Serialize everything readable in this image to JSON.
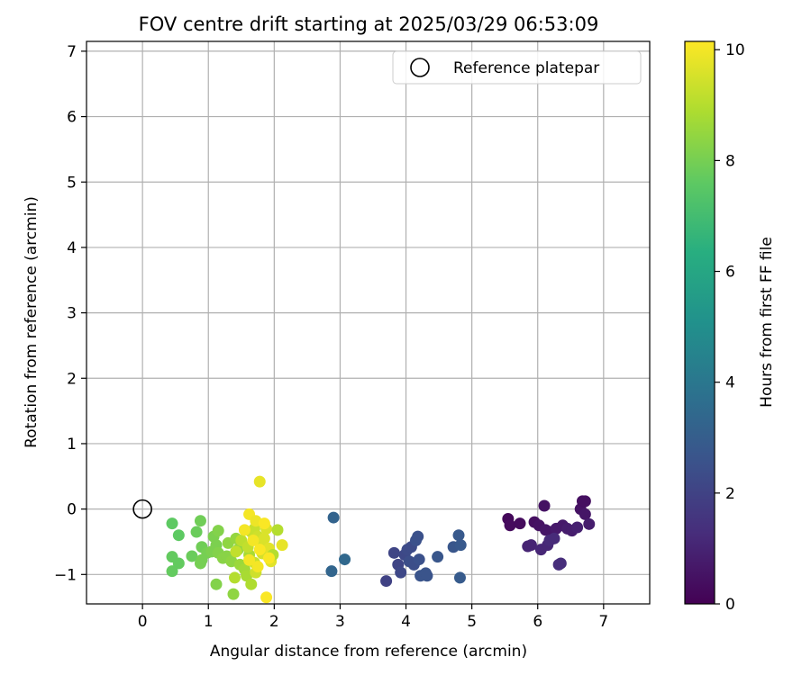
{
  "chart_data": {
    "type": "scatter",
    "title": "FOV centre drift starting at 2025/03/29 06:53:09",
    "xlabel": "Angular distance from reference (arcmin)",
    "ylabel": "Rotation from reference (arcmin)",
    "xlim": [
      -0.85,
      7.7
    ],
    "ylim": [
      -1.45,
      7.15
    ],
    "xticks": [
      0,
      1,
      2,
      3,
      4,
      5,
      6,
      7
    ],
    "yticks": [
      -1,
      0,
      1,
      2,
      3,
      4,
      5,
      6,
      7
    ],
    "grid": true,
    "legend": {
      "placement": "top-right",
      "entries": [
        "Reference platepar"
      ]
    },
    "reference_point": {
      "x": 0,
      "y": 0,
      "label": "Reference platepar"
    },
    "colorbar": {
      "label": "Hours from first FF file",
      "min": 0,
      "max": 10.15,
      "ticks": [
        0,
        2,
        4,
        6,
        8,
        10
      ],
      "colormap": "viridis"
    },
    "series": [
      {
        "name": "",
        "points": [
          {
            "x": 5.55,
            "y": -0.15,
            "t": 0.2
          },
          {
            "x": 5.58,
            "y": -0.25,
            "t": 0.3
          },
          {
            "x": 5.73,
            "y": -0.22,
            "t": 0.3
          },
          {
            "x": 5.95,
            "y": -0.2,
            "t": 0.4
          },
          {
            "x": 6.02,
            "y": -0.25,
            "t": 0.5
          },
          {
            "x": 6.1,
            "y": 0.05,
            "t": 0.5
          },
          {
            "x": 6.12,
            "y": -0.32,
            "t": 0.6
          },
          {
            "x": 6.2,
            "y": -0.35,
            "t": 0.6
          },
          {
            "x": 6.28,
            "y": -0.3,
            "t": 0.7
          },
          {
            "x": 6.38,
            "y": -0.25,
            "t": 0.7
          },
          {
            "x": 6.45,
            "y": -0.3,
            "t": 0.8
          },
          {
            "x": 6.52,
            "y": -0.33,
            "t": 0.8
          },
          {
            "x": 6.6,
            "y": -0.28,
            "t": 0.9
          },
          {
            "x": 6.65,
            "y": 0.0,
            "t": 0.5
          },
          {
            "x": 6.68,
            "y": 0.12,
            "t": 0.4
          },
          {
            "x": 6.72,
            "y": 0.12,
            "t": 0.4
          },
          {
            "x": 6.72,
            "y": -0.08,
            "t": 0.6
          },
          {
            "x": 6.78,
            "y": -0.23,
            "t": 0.8
          },
          {
            "x": 5.85,
            "y": -0.57,
            "t": 1.0
          },
          {
            "x": 5.9,
            "y": -0.55,
            "t": 1.0
          },
          {
            "x": 6.05,
            "y": -0.62,
            "t": 1.1
          },
          {
            "x": 6.15,
            "y": -0.55,
            "t": 1.1
          },
          {
            "x": 6.18,
            "y": -0.48,
            "t": 1.2
          },
          {
            "x": 6.25,
            "y": -0.45,
            "t": 1.2
          },
          {
            "x": 6.35,
            "y": -0.83,
            "t": 1.3
          },
          {
            "x": 6.32,
            "y": -0.85,
            "t": 1.3
          },
          {
            "x": 3.7,
            "y": -1.1,
            "t": 2.0
          },
          {
            "x": 3.82,
            "y": -0.67,
            "t": 2.1
          },
          {
            "x": 3.88,
            "y": -0.85,
            "t": 2.1
          },
          {
            "x": 3.92,
            "y": -0.97,
            "t": 2.2
          },
          {
            "x": 3.98,
            "y": -0.7,
            "t": 2.2
          },
          {
            "x": 4.02,
            "y": -0.62,
            "t": 2.3
          },
          {
            "x": 4.08,
            "y": -0.58,
            "t": 2.3
          },
          {
            "x": 4.05,
            "y": -0.8,
            "t": 2.4
          },
          {
            "x": 4.12,
            "y": -0.85,
            "t": 2.4
          },
          {
            "x": 4.15,
            "y": -0.48,
            "t": 2.5
          },
          {
            "x": 4.18,
            "y": -0.42,
            "t": 2.5
          },
          {
            "x": 4.2,
            "y": -0.77,
            "t": 2.5
          },
          {
            "x": 4.22,
            "y": -1.02,
            "t": 2.6
          },
          {
            "x": 4.3,
            "y": -0.98,
            "t": 2.6
          },
          {
            "x": 4.32,
            "y": -1.02,
            "t": 2.6
          },
          {
            "x": 4.48,
            "y": -0.73,
            "t": 2.7
          },
          {
            "x": 4.72,
            "y": -0.58,
            "t": 2.7
          },
          {
            "x": 4.8,
            "y": -0.4,
            "t": 2.8
          },
          {
            "x": 4.83,
            "y": -0.55,
            "t": 2.8
          },
          {
            "x": 4.82,
            "y": -1.05,
            "t": 2.9
          },
          {
            "x": 2.9,
            "y": -0.13,
            "t": 3.2
          },
          {
            "x": 2.87,
            "y": -0.95,
            "t": 3.3
          },
          {
            "x": 3.07,
            "y": -0.77,
            "t": 3.4
          },
          {
            "x": 0.45,
            "y": -0.22,
            "t": 7.6
          },
          {
            "x": 0.55,
            "y": -0.4,
            "t": 7.6
          },
          {
            "x": 0.45,
            "y": -0.73,
            "t": 7.7
          },
          {
            "x": 0.55,
            "y": -0.83,
            "t": 7.7
          },
          {
            "x": 0.45,
            "y": -0.95,
            "t": 7.7
          },
          {
            "x": 0.75,
            "y": -0.72,
            "t": 7.8
          },
          {
            "x": 0.82,
            "y": -0.35,
            "t": 7.8
          },
          {
            "x": 0.88,
            "y": -0.18,
            "t": 7.9
          },
          {
            "x": 0.9,
            "y": -0.58,
            "t": 7.9
          },
          {
            "x": 0.9,
            "y": -0.78,
            "t": 8.0
          },
          {
            "x": 0.88,
            "y": -0.83,
            "t": 8.0
          },
          {
            "x": 0.98,
            "y": -0.67,
            "t": 8.0
          },
          {
            "x": 1.05,
            "y": -0.65,
            "t": 8.1
          },
          {
            "x": 1.08,
            "y": -0.42,
            "t": 8.1
          },
          {
            "x": 1.12,
            "y": -0.55,
            "t": 8.1
          },
          {
            "x": 1.15,
            "y": -0.33,
            "t": 8.2
          },
          {
            "x": 1.15,
            "y": -0.67,
            "t": 8.2
          },
          {
            "x": 1.12,
            "y": -1.15,
            "t": 8.2
          },
          {
            "x": 1.22,
            "y": -0.75,
            "t": 8.3
          },
          {
            "x": 1.28,
            "y": -0.72,
            "t": 8.3
          },
          {
            "x": 1.3,
            "y": -0.52,
            "t": 8.4
          },
          {
            "x": 1.35,
            "y": -0.8,
            "t": 8.4
          },
          {
            "x": 1.38,
            "y": -1.3,
            "t": 8.4
          },
          {
            "x": 1.42,
            "y": -0.45,
            "t": 8.5
          },
          {
            "x": 1.45,
            "y": -0.62,
            "t": 8.5
          },
          {
            "x": 1.48,
            "y": -0.85,
            "t": 8.6
          },
          {
            "x": 1.55,
            "y": -0.92,
            "t": 8.7
          },
          {
            "x": 1.58,
            "y": -1.02,
            "t": 8.8
          },
          {
            "x": 1.62,
            "y": -0.7,
            "t": 8.8
          },
          {
            "x": 1.65,
            "y": -1.15,
            "t": 8.9
          },
          {
            "x": 1.4,
            "y": -1.05,
            "t": 9.0
          },
          {
            "x": 1.42,
            "y": -0.65,
            "t": 9.2
          },
          {
            "x": 1.5,
            "y": -0.48,
            "t": 9.1
          },
          {
            "x": 1.6,
            "y": -0.58,
            "t": 9.2
          },
          {
            "x": 1.65,
            "y": -0.35,
            "t": 9.3
          },
          {
            "x": 1.7,
            "y": -0.3,
            "t": 9.3
          },
          {
            "x": 1.7,
            "y": -0.82,
            "t": 9.3
          },
          {
            "x": 1.72,
            "y": -0.97,
            "t": 9.4
          },
          {
            "x": 1.75,
            "y": -0.42,
            "t": 9.4
          },
          {
            "x": 1.78,
            "y": 0.42,
            "t": 9.8
          },
          {
            "x": 1.8,
            "y": -0.55,
            "t": 9.5
          },
          {
            "x": 1.82,
            "y": -0.68,
            "t": 9.5
          },
          {
            "x": 1.85,
            "y": -0.45,
            "t": 9.6
          },
          {
            "x": 1.88,
            "y": -0.3,
            "t": 9.6
          },
          {
            "x": 1.92,
            "y": -0.6,
            "t": 9.7
          },
          {
            "x": 1.95,
            "y": -0.8,
            "t": 9.7
          },
          {
            "x": 1.98,
            "y": -0.7,
            "t": 9.0
          },
          {
            "x": 2.05,
            "y": -0.32,
            "t": 9.0
          },
          {
            "x": 2.12,
            "y": -0.55,
            "t": 9.8
          },
          {
            "x": 1.88,
            "y": -1.35,
            "t": 10.1
          },
          {
            "x": 1.62,
            "y": -0.08,
            "t": 10.0
          },
          {
            "x": 1.72,
            "y": -0.18,
            "t": 9.9
          },
          {
            "x": 1.55,
            "y": -0.32,
            "t": 10.0
          },
          {
            "x": 1.68,
            "y": -0.48,
            "t": 10.0
          },
          {
            "x": 1.78,
            "y": -0.62,
            "t": 10.1
          },
          {
            "x": 1.85,
            "y": -0.22,
            "t": 10.1
          },
          {
            "x": 1.62,
            "y": -0.78,
            "t": 10.0
          },
          {
            "x": 1.92,
            "y": -0.75,
            "t": 10.1
          },
          {
            "x": 1.75,
            "y": -0.88,
            "t": 10.0
          }
        ]
      }
    ]
  }
}
